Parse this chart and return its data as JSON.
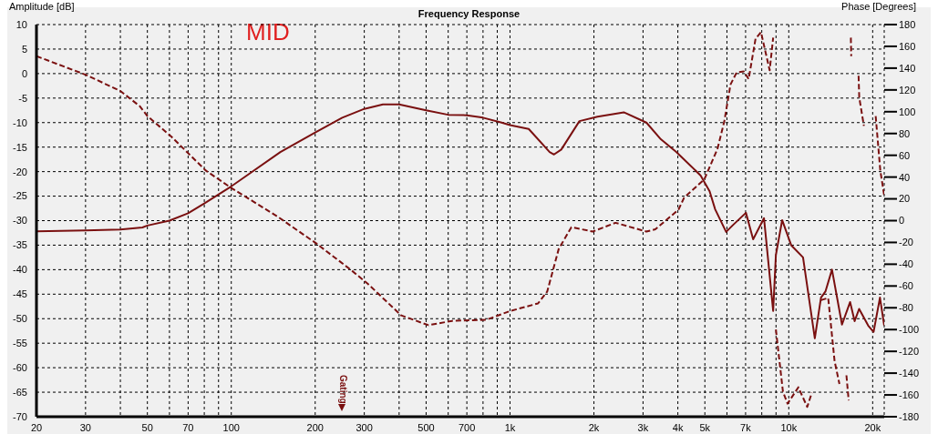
{
  "chart_data": {
    "type": "line",
    "title": "Frequency Response",
    "ylabel": "Amplitude [dB]",
    "y2label": "Phase [Degrees]",
    "annotations": [
      "MID",
      "Gating"
    ],
    "log": "x",
    "grid": true,
    "marker": "none",
    "xlim": [
      20,
      22000
    ],
    "xticks": [
      20,
      30,
      {
        "value": 40,
        "label": null
      },
      50,
      {
        "value": 60,
        "label": null
      },
      70,
      {
        "value": 80,
        "label": null
      },
      {
        "value": 90,
        "label": null
      },
      100,
      200,
      300,
      {
        "value": 400,
        "label": null
      },
      500,
      {
        "value": 600,
        "label": null
      },
      700,
      {
        "value": 800,
        "label": null
      },
      {
        "value": 900,
        "label": null
      },
      {
        "value": 1000,
        "label": "1k"
      },
      {
        "value": 2000,
        "label": "2k"
      },
      {
        "value": 3000,
        "label": "3k"
      },
      {
        "value": 4000,
        "label": "4k"
      },
      {
        "value": 5000,
        "label": "5k"
      },
      {
        "value": 6000,
        "label": null
      },
      {
        "value": 7000,
        "label": "7k"
      },
      {
        "value": 8000,
        "label": null
      },
      {
        "value": 9000,
        "label": null
      },
      {
        "value": 10000,
        "label": "10k"
      },
      {
        "value": 20000,
        "label": "20k"
      }
    ],
    "ylim": [
      -70,
      10
    ],
    "yticks": [
      -70,
      -65,
      -60,
      -55,
      -50,
      -45,
      -40,
      -35,
      -30,
      -25,
      -20,
      -15,
      -10,
      -5,
      0,
      5,
      10
    ],
    "y2lim": [
      -180,
      180
    ],
    "y2ticks": [
      -180,
      -160,
      -140,
      -120,
      -100,
      -80,
      -60,
      -40,
      -20,
      0,
      20,
      40,
      60,
      80,
      100,
      120,
      140,
      160,
      180
    ],
    "series": [
      {
        "color": "#7a1010",
        "line_style": "solid",
        "axis": "y",
        "x": [
          20,
          30,
          40,
          48,
          50,
          60,
          70,
          80,
          100,
          150,
          200,
          250,
          300,
          350,
          400,
          500,
          600,
          700,
          800,
          933,
          1000,
          1167,
          1387,
          1438,
          1527,
          1774,
          2060,
          2560,
          3085,
          3476,
          3948,
          4830,
          5200,
          5445,
          5960,
          6280,
          7020,
          7450,
          8150,
          8790,
          8990,
          9470,
          10200,
          11250,
          12400,
          13050,
          13550,
          14290,
          15520,
          16600,
          17230,
          17880,
          19270,
          20150,
          21240,
          22000
        ],
        "values": [
          -32.2,
          -32,
          -31.8,
          -31.4,
          -31,
          -30,
          -28.5,
          -26.5,
          -23,
          -16,
          -12,
          -9,
          -7.2,
          -6.3,
          -6.3,
          -7.5,
          -8.4,
          -8.5,
          -9,
          -10,
          -10.5,
          -11.3,
          -16,
          -16.5,
          -15.5,
          -9.7,
          -8.8,
          -7.9,
          -10,
          -13.4,
          -16,
          -20.8,
          -24,
          -27.7,
          -32.3,
          -31,
          -28.4,
          -33.8,
          -29.5,
          -48.4,
          -37,
          -29.9,
          -35,
          -37.5,
          -54,
          -45.7,
          -44.4,
          -40,
          -51.2,
          -46.6,
          -50.5,
          -48,
          -51.4,
          -52.7,
          -45.7,
          -51.4
        ]
      },
      {
        "color": "#7a1010",
        "line_style": "dashed",
        "axis": "y2",
        "x": [
          20,
          30,
          40,
          47,
          50,
          61,
          81,
          100,
          146,
          202,
          271,
          309,
          407,
          510,
          620,
          823,
          1000,
          1260,
          1360,
          1495,
          1660,
          1980,
          2390,
          3085,
          3320,
          4020,
          4210,
          4980,
          5550,
          5870,
          6180,
          6500,
          6900,
          7180,
          7600,
          7950,
          8540,
          8790,
          8900,
          8990,
          9530,
          9900,
          10820,
          11650,
          12100,
          12500,
          13050,
          13850,
          14600,
          15200,
          15600,
          16100,
          16400,
          16550,
          16700,
          16750,
          17300,
          17800,
          17900,
          18600,
          19500,
          20500,
          21300,
          22000
        ],
        "values": [
          151,
          134,
          119,
          105,
          96,
          77,
          46,
          30,
          4,
          -21,
          -46,
          -58,
          -87,
          -96,
          -92,
          -91,
          -83,
          -76,
          -65,
          -26,
          -6,
          -10,
          -2,
          -10,
          -8,
          10,
          21,
          38,
          66,
          91,
          125,
          136,
          137,
          130,
          167,
          173,
          138,
          168,
          null,
          -100,
          -157,
          -168,
          -153,
          -171,
          -158,
          null,
          -73,
          -71,
          -129,
          -150,
          null,
          -142,
          -165,
          null,
          168,
          151,
          null,
          133,
          113,
          87,
          null,
          96,
          46,
          23
        ]
      }
    ]
  }
}
